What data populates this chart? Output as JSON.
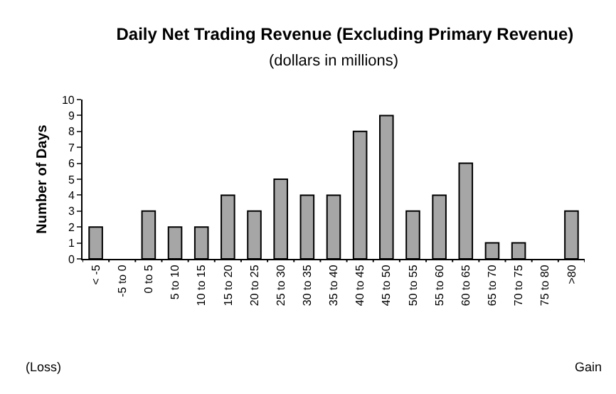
{
  "chart_data": {
    "type": "bar",
    "title": "Daily Net Trading Revenue (Excluding Primary Revenue)",
    "subtitle": "(dollars in millions)",
    "ylabel": "Number of Days",
    "categories": [
      "< -5",
      "-5 to 0",
      "0 to 5",
      "5 to 10",
      "10 to 15",
      "15 to 20",
      "20 to 25",
      "25 to 30",
      "30 to 35",
      "35 to 40",
      "40 to 45",
      "45 to 50",
      "50 to 55",
      "55 to 60",
      "60 to 65",
      "65 to 70",
      "70 to 75",
      "75 to 80",
      ">80"
    ],
    "values": [
      2,
      0,
      3,
      2,
      2,
      4,
      3,
      5,
      4,
      4,
      8,
      9,
      3,
      4,
      6,
      1,
      1,
      0,
      3
    ],
    "color": "#a6a6a6",
    "ylim": [
      0,
      10
    ],
    "yticks": [
      0,
      1,
      2,
      3,
      4,
      5,
      6,
      7,
      8,
      9,
      10
    ],
    "grid": false,
    "legend": false,
    "annotations": [
      "(Loss)",
      "Gain"
    ]
  }
}
